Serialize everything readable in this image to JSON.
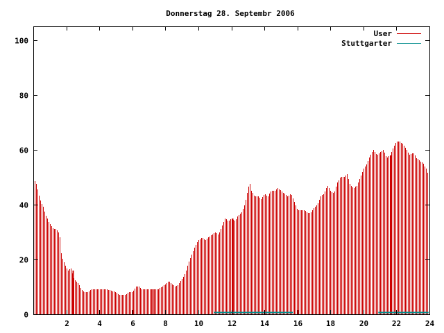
{
  "chart_data": {
    "type": "bar",
    "title": "Donnerstag 28. Septembr 2006",
    "xlabel": "",
    "ylabel": "",
    "xlim": [
      0,
      24
    ],
    "ylim": [
      0,
      105
    ],
    "x_ticks": [
      2,
      4,
      6,
      8,
      10,
      12,
      14,
      16,
      18,
      20,
      22,
      24
    ],
    "x_tick_labels": [
      "2",
      "4",
      "6",
      "8",
      "10",
      "12",
      "14",
      "16",
      "18",
      "20",
      "22",
      "24"
    ],
    "y_ticks": [
      0,
      20,
      40,
      60,
      80,
      100
    ],
    "y_tick_labels": [
      "0",
      "20",
      "40",
      "60",
      "80",
      "100"
    ],
    "grid": false,
    "legend_position": "top-right",
    "colors": {
      "User": "#cc0000",
      "Stuttgarter": "#008b8b"
    },
    "series": [
      {
        "name": "User",
        "keypoints": [
          [
            0.0,
            47
          ],
          [
            0.1,
            49
          ],
          [
            0.2,
            47
          ],
          [
            0.3,
            44
          ],
          [
            0.45,
            41
          ],
          [
            0.6,
            39
          ],
          [
            0.75,
            36
          ],
          [
            0.9,
            34
          ],
          [
            1.0,
            33
          ],
          [
            1.1,
            32
          ],
          [
            1.25,
            31
          ],
          [
            1.4,
            31
          ],
          [
            1.5,
            30
          ],
          [
            1.6,
            28
          ],
          [
            1.7,
            21
          ],
          [
            1.8,
            20
          ],
          [
            1.9,
            18
          ],
          [
            2.0,
            17
          ],
          [
            2.1,
            16
          ],
          [
            2.25,
            17
          ],
          [
            2.35,
            15
          ],
          [
            2.45,
            13
          ],
          [
            2.6,
            12
          ],
          [
            2.75,
            11
          ],
          [
            2.9,
            9
          ],
          [
            3.1,
            8
          ],
          [
            3.3,
            8
          ],
          [
            3.5,
            9
          ],
          [
            4.0,
            9
          ],
          [
            4.5,
            9
          ],
          [
            5.0,
            8
          ],
          [
            5.2,
            7
          ],
          [
            5.5,
            7
          ],
          [
            5.8,
            8
          ],
          [
            6.0,
            8
          ],
          [
            6.2,
            10
          ],
          [
            6.4,
            10
          ],
          [
            6.6,
            9
          ],
          [
            7.0,
            9
          ],
          [
            7.5,
            9
          ],
          [
            7.8,
            10
          ],
          [
            8.0,
            11
          ],
          [
            8.2,
            12
          ],
          [
            8.4,
            11
          ],
          [
            8.6,
            10
          ],
          [
            8.8,
            11
          ],
          [
            9.0,
            13
          ],
          [
            9.2,
            15
          ],
          [
            9.4,
            19
          ],
          [
            9.6,
            22
          ],
          [
            9.8,
            25
          ],
          [
            10.0,
            27
          ],
          [
            10.2,
            28
          ],
          [
            10.4,
            27
          ],
          [
            10.6,
            28
          ],
          [
            10.8,
            29
          ],
          [
            11.0,
            30
          ],
          [
            11.2,
            29
          ],
          [
            11.4,
            32
          ],
          [
            11.6,
            35
          ],
          [
            11.8,
            34
          ],
          [
            12.0,
            35
          ],
          [
            12.2,
            34
          ],
          [
            12.4,
            36
          ],
          [
            12.6,
            37
          ],
          [
            12.8,
            40
          ],
          [
            13.0,
            46
          ],
          [
            13.1,
            48
          ],
          [
            13.2,
            45
          ],
          [
            13.4,
            43
          ],
          [
            13.6,
            43
          ],
          [
            13.8,
            42
          ],
          [
            14.0,
            44
          ],
          [
            14.2,
            43
          ],
          [
            14.4,
            45
          ],
          [
            14.6,
            45
          ],
          [
            14.8,
            46
          ],
          [
            15.0,
            45
          ],
          [
            15.2,
            44
          ],
          [
            15.4,
            43
          ],
          [
            15.6,
            44
          ],
          [
            15.8,
            41
          ],
          [
            16.0,
            38
          ],
          [
            16.2,
            38
          ],
          [
            16.4,
            38
          ],
          [
            16.6,
            37
          ],
          [
            16.8,
            37
          ],
          [
            17.0,
            39
          ],
          [
            17.2,
            40
          ],
          [
            17.4,
            43
          ],
          [
            17.6,
            44
          ],
          [
            17.8,
            47
          ],
          [
            18.0,
            45
          ],
          [
            18.2,
            44
          ],
          [
            18.4,
            48
          ],
          [
            18.6,
            50
          ],
          [
            18.8,
            50
          ],
          [
            19.0,
            51
          ],
          [
            19.2,
            47
          ],
          [
            19.4,
            46
          ],
          [
            19.6,
            47
          ],
          [
            19.8,
            50
          ],
          [
            20.0,
            53
          ],
          [
            20.2,
            55
          ],
          [
            20.4,
            58
          ],
          [
            20.6,
            60
          ],
          [
            20.8,
            58
          ],
          [
            21.0,
            59
          ],
          [
            21.2,
            60
          ],
          [
            21.4,
            57
          ],
          [
            21.6,
            58
          ],
          [
            21.8,
            61
          ],
          [
            22.0,
            63
          ],
          [
            22.2,
            63
          ],
          [
            22.4,
            62
          ],
          [
            22.6,
            60
          ],
          [
            22.8,
            58
          ],
          [
            23.0,
            59
          ],
          [
            23.2,
            57
          ],
          [
            23.4,
            56
          ],
          [
            23.6,
            55
          ],
          [
            23.8,
            53
          ],
          [
            23.95,
            50
          ]
        ],
        "highlight_bars": [
          {
            "x": 2.4,
            "value": 16
          },
          {
            "x": 7.25,
            "value": 9
          },
          {
            "x": 12.05,
            "value": 35
          },
          {
            "x": 21.65,
            "value": 58
          }
        ]
      },
      {
        "name": "Stuttgarter",
        "segments": [
          {
            "x_start": 10.95,
            "x_end": 15.75,
            "value": 0.4
          },
          {
            "x_start": 20.9,
            "x_end": 23.95,
            "value": 0.4
          }
        ]
      }
    ]
  }
}
